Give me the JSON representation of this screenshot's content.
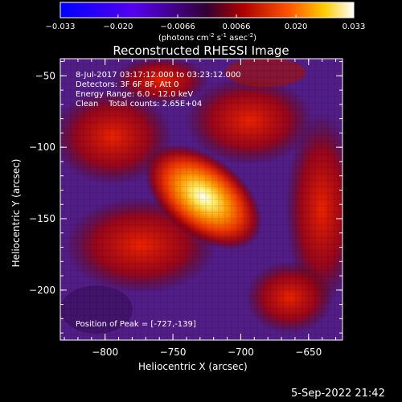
{
  "colorbar": {
    "min": -0.033,
    "max": 0.033,
    "ticks": [
      "-0.033",
      "-0.020",
      "-0.0066",
      "0.0066",
      "0.020",
      "0.033"
    ],
    "units_prefix": "(photons cm",
    "units_exp1": "-2",
    "units_mid": " s",
    "units_exp2": "-1",
    "units_mid2": " asec",
    "units_exp3": "-2",
    "units_suffix": ")"
  },
  "image": {
    "title": "Reconstructed RHESSI Image",
    "info_lines": [
      "8-Jul-2017 03:17:12.000 to 03:23:12.000",
      "Detectors: 3F 6F 8F, Att 0",
      "Energy Range: 6.0 - 12.0 keV",
      "Clean    Total counts: 2.65E+04"
    ],
    "peak_label": "Position of Peak = [-727,-139]",
    "xlabel": "Heliocentric X (arcsec)",
    "ylabel": "Heliocentric Y (arcsec)",
    "x_ticks": [
      -800,
      -750,
      -700,
      -650
    ],
    "y_ticks": [
      -50,
      -100,
      -150,
      -200
    ],
    "x_tick_labels": [
      "-800",
      "-750",
      "-700",
      "-650"
    ],
    "y_tick_labels": [
      "-50",
      "-100",
      "-150",
      "-200"
    ],
    "xlim": [
      -833,
      -625
    ],
    "ylim": [
      -235,
      -38
    ],
    "peak": [
      -727,
      -139
    ]
  },
  "timestamp": "5-Sep-2022 21:42"
}
